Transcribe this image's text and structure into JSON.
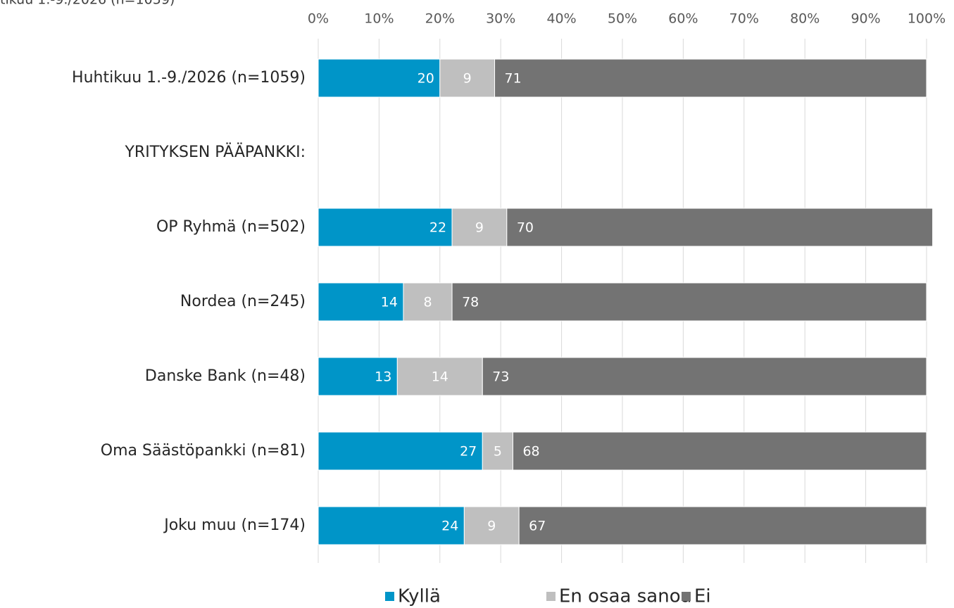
{
  "chart_data": {
    "type": "stacked_barh",
    "title": "tikuu 1.-9./2026 (n=1059)",
    "categories": [
      "Huhtikuu 1.-9./2026 (n=1059)",
      "YRITYKSEN PÄÄPANKKI:",
      "OP Ryhmä (n=502)",
      "Nordea (n=245)",
      "Danske Bank (n=48)",
      "Oma Säästöpankki (n=81)",
      "Joku muu (n=174)"
    ],
    "series": [
      {
        "name": "Kyllä",
        "color": "#0095c8",
        "values": [
          20,
          null,
          22,
          14,
          13,
          27,
          24
        ]
      },
      {
        "name": "En osaa sanoa",
        "color": "#bfbfbf",
        "values": [
          9,
          null,
          9,
          8,
          14,
          5,
          9
        ]
      },
      {
        "name": "Ei",
        "color": "#737373",
        "values": [
          71,
          null,
          70,
          78,
          73,
          68,
          67
        ]
      }
    ],
    "xlim": [
      0,
      100
    ],
    "xticks": [
      {
        "value": 0,
        "label": "0%"
      },
      {
        "value": 10,
        "label": "10%"
      },
      {
        "value": 20,
        "label": "20%"
      },
      {
        "value": 30,
        "label": "30%"
      },
      {
        "value": 40,
        "label": "40%"
      },
      {
        "value": 50,
        "label": "50%"
      },
      {
        "value": 60,
        "label": "60%"
      },
      {
        "value": 70,
        "label": "70%"
      },
      {
        "value": 80,
        "label": "80%"
      },
      {
        "value": 90,
        "label": "90%"
      },
      {
        "value": 100,
        "label": "100%"
      }
    ],
    "grid": true,
    "legend": "bottom"
  }
}
